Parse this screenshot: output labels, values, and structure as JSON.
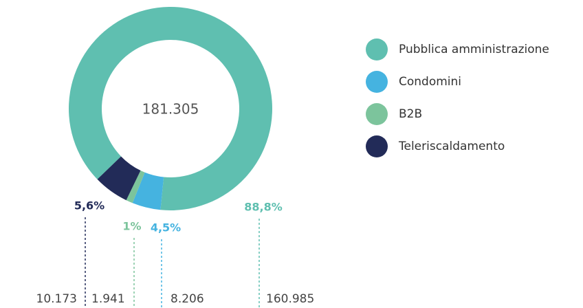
{
  "chart_data": {
    "type": "donut",
    "categories": [
      "Pubblica amministrazione",
      "Condomini",
      "B2B",
      "Teleriscaldamento"
    ],
    "values": [
      160985,
      8206,
      1941,
      10173
    ],
    "value_labels": [
      "160.985",
      "8.206",
      "1.941",
      "10.173"
    ],
    "percentages": [
      88.8,
      4.5,
      1,
      5.6
    ],
    "percentage_labels": [
      "88,8%",
      "4,5%",
      "1%",
      "5,6%"
    ],
    "colors": [
      "#5fbfb0",
      "#45b3e0",
      "#7cc49c",
      "#222b58"
    ],
    "total": 181305,
    "total_label": "181.305",
    "legend": "right"
  }
}
